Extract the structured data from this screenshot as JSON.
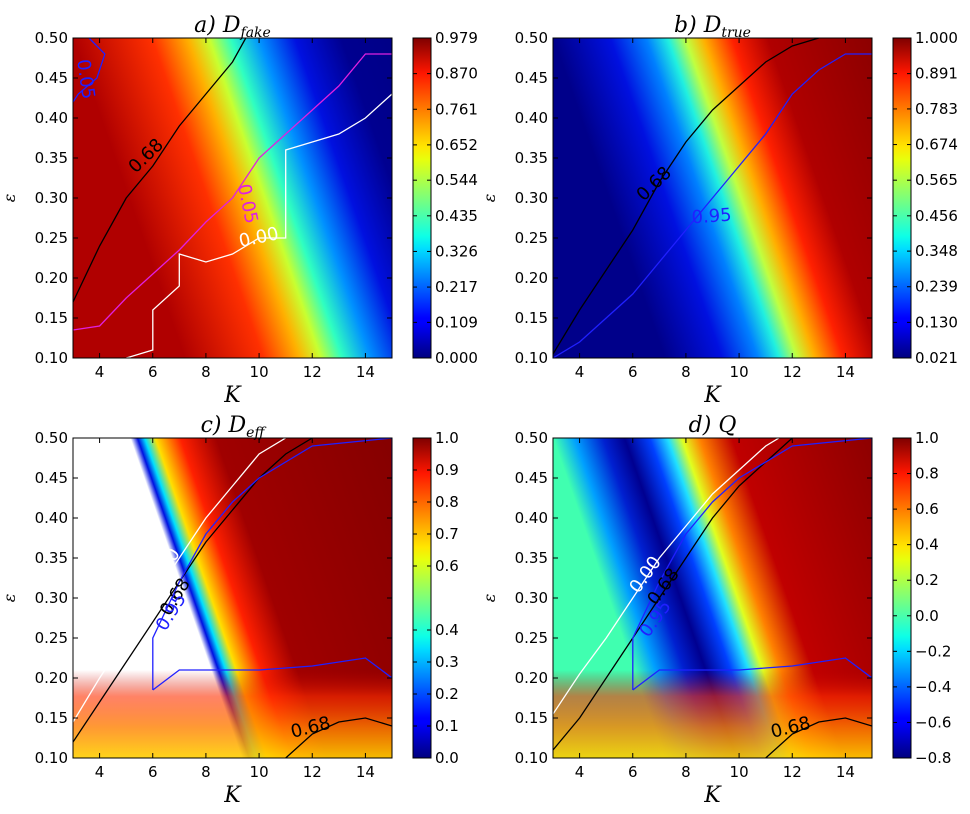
{
  "chart_data": [
    {
      "type": "heatmap",
      "title_prefix": "a)",
      "title_symbol": "D",
      "title_subscript": "fake",
      "xlabel": "K",
      "ylabel": "ε",
      "xlim": [
        3,
        15
      ],
      "ylim": [
        0.1,
        0.5
      ],
      "xticks": [
        "4",
        "6",
        "8",
        "10",
        "12",
        "14"
      ],
      "yticks": [
        "0.10",
        "0.15",
        "0.20",
        "0.25",
        "0.30",
        "0.35",
        "0.40",
        "0.45",
        "0.50"
      ],
      "colorbar_range": [
        0.0,
        0.979
      ],
      "colorbar_ticks": [
        "0.000",
        "0.109",
        "0.217",
        "0.326",
        "0.435",
        "0.544",
        "0.652",
        "0.761",
        "0.870",
        "0.979"
      ],
      "contour_labels": [
        "0.68",
        "0.05",
        "0.00",
        "0.05"
      ],
      "contours": [
        {
          "level": "0.68",
          "color": "#000000",
          "points": [
            [
              3,
              0.17
            ],
            [
              4,
              0.24
            ],
            [
              5,
              0.3
            ],
            [
              6,
              0.34
            ],
            [
              7,
              0.39
            ],
            [
              8,
              0.43
            ],
            [
              9,
              0.47
            ],
            [
              9.5,
              0.5
            ]
          ]
        },
        {
          "level": "0.05",
          "color": "#e020e0",
          "points": [
            [
              3,
              0.135
            ],
            [
              4,
              0.14
            ],
            [
              5,
              0.175
            ],
            [
              6,
              0.205
            ],
            [
              7,
              0.235
            ],
            [
              8,
              0.27
            ],
            [
              9,
              0.3
            ],
            [
              10,
              0.35
            ],
            [
              11,
              0.38
            ],
            [
              12,
              0.41
            ],
            [
              13,
              0.44
            ],
            [
              14,
              0.48
            ],
            [
              15,
              0.48
            ]
          ]
        },
        {
          "level": "0.00",
          "color": "#ffffff",
          "points": [
            [
              5,
              0.1
            ],
            [
              6,
              0.11
            ],
            [
              6,
              0.16
            ],
            [
              7,
              0.19
            ],
            [
              7,
              0.23
            ],
            [
              8,
              0.22
            ],
            [
              9,
              0.23
            ],
            [
              10,
              0.25
            ],
            [
              11,
              0.25
            ],
            [
              11,
              0.36
            ],
            [
              12,
              0.37
            ],
            [
              13,
              0.38
            ],
            [
              14,
              0.4
            ],
            [
              15,
              0.43
            ]
          ]
        },
        {
          "level": "0.05",
          "color": "#2020ff",
          "points": [
            [
              3.6,
              0.5
            ],
            [
              4.2,
              0.48
            ],
            [
              3.9,
              0.45
            ],
            [
              3.2,
              0.43
            ],
            [
              3,
              0.42
            ]
          ]
        }
      ]
    },
    {
      "type": "heatmap",
      "title_prefix": "b)",
      "title_symbol": "D",
      "title_subscript": "true",
      "xlabel": "K",
      "ylabel": "ε",
      "xlim": [
        3,
        15
      ],
      "ylim": [
        0.1,
        0.5
      ],
      "xticks": [
        "4",
        "6",
        "8",
        "10",
        "12",
        "14"
      ],
      "yticks": [
        "0.10",
        "0.15",
        "0.20",
        "0.25",
        "0.30",
        "0.35",
        "0.40",
        "0.45",
        "0.50"
      ],
      "colorbar_range": [
        0.021,
        1.0
      ],
      "colorbar_ticks": [
        "0.021",
        "0.130",
        "0.239",
        "0.348",
        "0.456",
        "0.565",
        "0.674",
        "0.783",
        "0.891",
        "1.000"
      ],
      "contour_labels": [
        "0.68",
        "0.95"
      ],
      "contours": [
        {
          "level": "0.68",
          "color": "#000000",
          "points": [
            [
              3,
              0.105
            ],
            [
              4,
              0.16
            ],
            [
              5,
              0.21
            ],
            [
              6,
              0.26
            ],
            [
              7,
              0.32
            ],
            [
              8,
              0.37
            ],
            [
              9,
              0.41
            ],
            [
              10,
              0.44
            ],
            [
              11,
              0.47
            ],
            [
              12,
              0.49
            ],
            [
              13,
              0.5
            ]
          ]
        },
        {
          "level": "0.95",
          "color": "#2020ff",
          "points": [
            [
              3,
              0.1
            ],
            [
              4,
              0.12
            ],
            [
              5,
              0.15
            ],
            [
              6,
              0.18
            ],
            [
              7,
              0.22
            ],
            [
              8,
              0.26
            ],
            [
              9,
              0.3
            ],
            [
              10,
              0.34
            ],
            [
              11,
              0.38
            ],
            [
              12,
              0.43
            ],
            [
              13,
              0.46
            ],
            [
              14,
              0.48
            ],
            [
              15,
              0.48
            ]
          ]
        }
      ]
    },
    {
      "type": "heatmap",
      "title_prefix": "c)",
      "title_symbol": "D",
      "title_subscript": "eff",
      "xlabel": "K",
      "ylabel": "ε",
      "xlim": [
        3,
        15
      ],
      "ylim": [
        0.1,
        0.5
      ],
      "xticks": [
        "4",
        "6",
        "8",
        "10",
        "12",
        "14"
      ],
      "yticks": [
        "0.10",
        "0.15",
        "0.20",
        "0.25",
        "0.30",
        "0.35",
        "0.40",
        "0.45",
        "0.50"
      ],
      "colorbar_range": [
        0.0,
        1.0
      ],
      "colorbar_ticks": [
        "0.0",
        "0.1",
        "0.2",
        "0.3",
        "0.4",
        "0.6",
        "0.7",
        "0.8",
        "0.9",
        "1.0"
      ],
      "contour_labels": [
        "0.00",
        "0.68",
        "0.95",
        "0.68"
      ],
      "contours": [
        {
          "level": "0.00",
          "color": "#ffffff",
          "points": [
            [
              3,
              0.145
            ],
            [
              4,
              0.2
            ],
            [
              5,
              0.25
            ],
            [
              6,
              0.3
            ],
            [
              7,
              0.35
            ],
            [
              8,
              0.4
            ],
            [
              9,
              0.44
            ],
            [
              10,
              0.48
            ],
            [
              11,
              0.5
            ]
          ]
        },
        {
          "level": "0.68",
          "color": "#000000",
          "points": [
            [
              3,
              0.12
            ],
            [
              4,
              0.17
            ],
            [
              5,
              0.22
            ],
            [
              6,
              0.27
            ],
            [
              7,
              0.32
            ],
            [
              8,
              0.37
            ],
            [
              9,
              0.41
            ],
            [
              10,
              0.45
            ],
            [
              11,
              0.48
            ],
            [
              12,
              0.5
            ]
          ]
        },
        {
          "level": "0.95",
          "color": "#2020ff",
          "points": [
            [
              6,
              0.185
            ],
            [
              7,
              0.21
            ],
            [
              8,
              0.21
            ],
            [
              10,
              0.21
            ],
            [
              12,
              0.215
            ],
            [
              14,
              0.225
            ],
            [
              15,
              0.2
            ],
            [
              15,
              0.5
            ],
            [
              12,
              0.49
            ],
            [
              10,
              0.45
            ],
            [
              9,
              0.42
            ],
            [
              8,
              0.38
            ],
            [
              7,
              0.32
            ],
            [
              6,
              0.25
            ],
            [
              6,
              0.185
            ]
          ]
        },
        {
          "level": "0.68",
          "color": "#000000",
          "points": [
            [
              11,
              0.1
            ],
            [
              12,
              0.13
            ],
            [
              13,
              0.145
            ],
            [
              14,
              0.15
            ],
            [
              15,
              0.14
            ]
          ]
        }
      ]
    },
    {
      "type": "heatmap",
      "title_prefix": "d)",
      "title_symbol": "Q",
      "title_subscript": "",
      "xlabel": "K",
      "ylabel": "ε",
      "xlim": [
        3,
        15
      ],
      "ylim": [
        0.1,
        0.5
      ],
      "xticks": [
        "4",
        "6",
        "8",
        "10",
        "12",
        "14"
      ],
      "yticks": [
        "0.10",
        "0.15",
        "0.20",
        "0.25",
        "0.30",
        "0.35",
        "0.40",
        "0.45",
        "0.50"
      ],
      "colorbar_range": [
        -0.8,
        1.0
      ],
      "colorbar_ticks": [
        "−0.8",
        "−0.6",
        "−0.4",
        "−0.2",
        "0.0",
        "0.2",
        "0.4",
        "0.6",
        "0.8",
        "1.0"
      ],
      "contour_labels": [
        "0.00",
        "0.68",
        "0.95",
        "0.68"
      ],
      "contours": [
        {
          "level": "0.00",
          "color": "#ffffff",
          "points": [
            [
              3,
              0.155
            ],
            [
              4,
              0.205
            ],
            [
              5,
              0.25
            ],
            [
              6,
              0.3
            ],
            [
              7,
              0.35
            ],
            [
              8,
              0.39
            ],
            [
              9,
              0.43
            ],
            [
              10,
              0.46
            ],
            [
              11,
              0.49
            ],
            [
              11.5,
              0.5
            ]
          ]
        },
        {
          "level": "0.68",
          "color": "#000000",
          "points": [
            [
              3,
              0.11
            ],
            [
              4,
              0.15
            ],
            [
              5,
              0.2
            ],
            [
              6,
              0.25
            ],
            [
              7,
              0.3
            ],
            [
              8,
              0.35
            ],
            [
              9,
              0.4
            ],
            [
              10,
              0.44
            ],
            [
              11,
              0.47
            ],
            [
              12,
              0.5
            ]
          ]
        },
        {
          "level": "0.95",
          "color": "#2020ff",
          "points": [
            [
              6,
              0.185
            ],
            [
              7,
              0.21
            ],
            [
              8,
              0.21
            ],
            [
              10,
              0.21
            ],
            [
              12,
              0.215
            ],
            [
              14,
              0.225
            ],
            [
              15,
              0.2
            ],
            [
              15,
              0.5
            ],
            [
              12,
              0.49
            ],
            [
              10,
              0.45
            ],
            [
              9,
              0.42
            ],
            [
              8,
              0.38
            ],
            [
              7,
              0.32
            ],
            [
              6,
              0.25
            ],
            [
              6,
              0.185
            ]
          ]
        },
        {
          "level": "0.68",
          "color": "#000000",
          "points": [
            [
              11,
              0.1
            ],
            [
              12,
              0.13
            ],
            [
              13,
              0.145
            ],
            [
              14,
              0.15
            ],
            [
              15,
              0.14
            ]
          ]
        }
      ]
    }
  ]
}
